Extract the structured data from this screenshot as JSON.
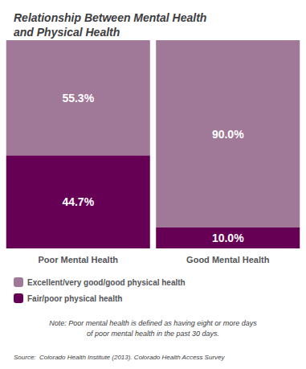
{
  "chart_data": {
    "type": "bar",
    "title": "Relationship Between Mental Health\nand Physical Health",
    "categories": [
      "Poor Mental Health",
      "Good Mental Health"
    ],
    "series": [
      {
        "name": "Fair/poor physical health",
        "color": "#660055",
        "values": [
          44.7,
          10.0
        ],
        "value_labels": [
          "44.7%",
          "10.0%"
        ]
      },
      {
        "name": "Excellent/very good/good physical health",
        "color": "#a07898",
        "values": [
          55.3,
          90.0
        ],
        "value_labels": [
          "55.3%",
          "90.0%"
        ]
      }
    ],
    "stacked": true,
    "data_labels": true,
    "ylim": [
      0,
      100
    ],
    "tick_labels": "x",
    "grid": false,
    "legend": "bottom",
    "annotations": [
      "Note: Poor mental health is defined as having eight or more days\nof poor mental health in the past 30 days.",
      "Source:  Colorado Health Institute (2013). Colorado Health Access Survey"
    ]
  }
}
